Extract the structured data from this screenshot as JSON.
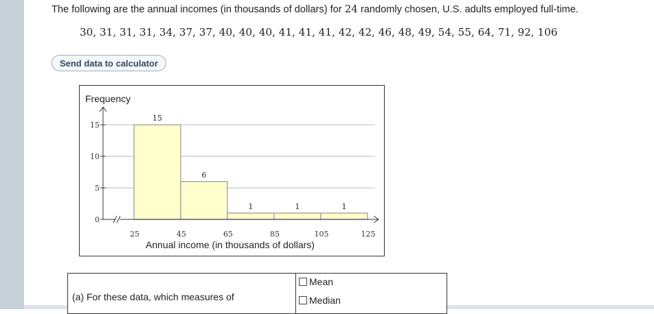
{
  "intro": {
    "prefix": "The following are the annual incomes (in thousands of dollars) for",
    "count": "24",
    "suffix": "randomly chosen, U.S. adults employed full-time."
  },
  "dataset": "30, 31, 31, 31, 34, 37, 37, 40, 40, 40, 41, 41, 41, 42, 42, 46, 48, 49, 54, 55, 64, 71, 92, 106",
  "send_button": "Send data to calculator",
  "question": {
    "text": "(a) For these data, which measures of",
    "options": [
      "Mean",
      "Median"
    ]
  },
  "colors": {
    "bar_fill": "#ffffcc",
    "bar_stroke": "#aaaaaa",
    "grid": "#bbbbbb",
    "accent_button_text": "#2f4a63"
  },
  "chart_data": {
    "type": "bar",
    "histogram": true,
    "title": "",
    "ylabel": "Frequency",
    "xlabel": "Annual income (in thousands of dollars)",
    "bin_edges": [
      25,
      45,
      65,
      85,
      105,
      125
    ],
    "values": [
      15,
      6,
      1,
      1,
      1
    ],
    "data_labels": [
      "15",
      "6",
      "1",
      "1",
      "1"
    ],
    "x_ticks": [
      "25",
      "45",
      "65",
      "85",
      "105",
      "125"
    ],
    "y_ticks": [
      "0",
      "5",
      "10",
      "15"
    ],
    "y_tick_values": [
      0,
      5,
      10,
      15
    ],
    "ylim": [
      0,
      16
    ],
    "xlim": [
      25,
      125
    ],
    "axis_break": true,
    "grid": true
  }
}
